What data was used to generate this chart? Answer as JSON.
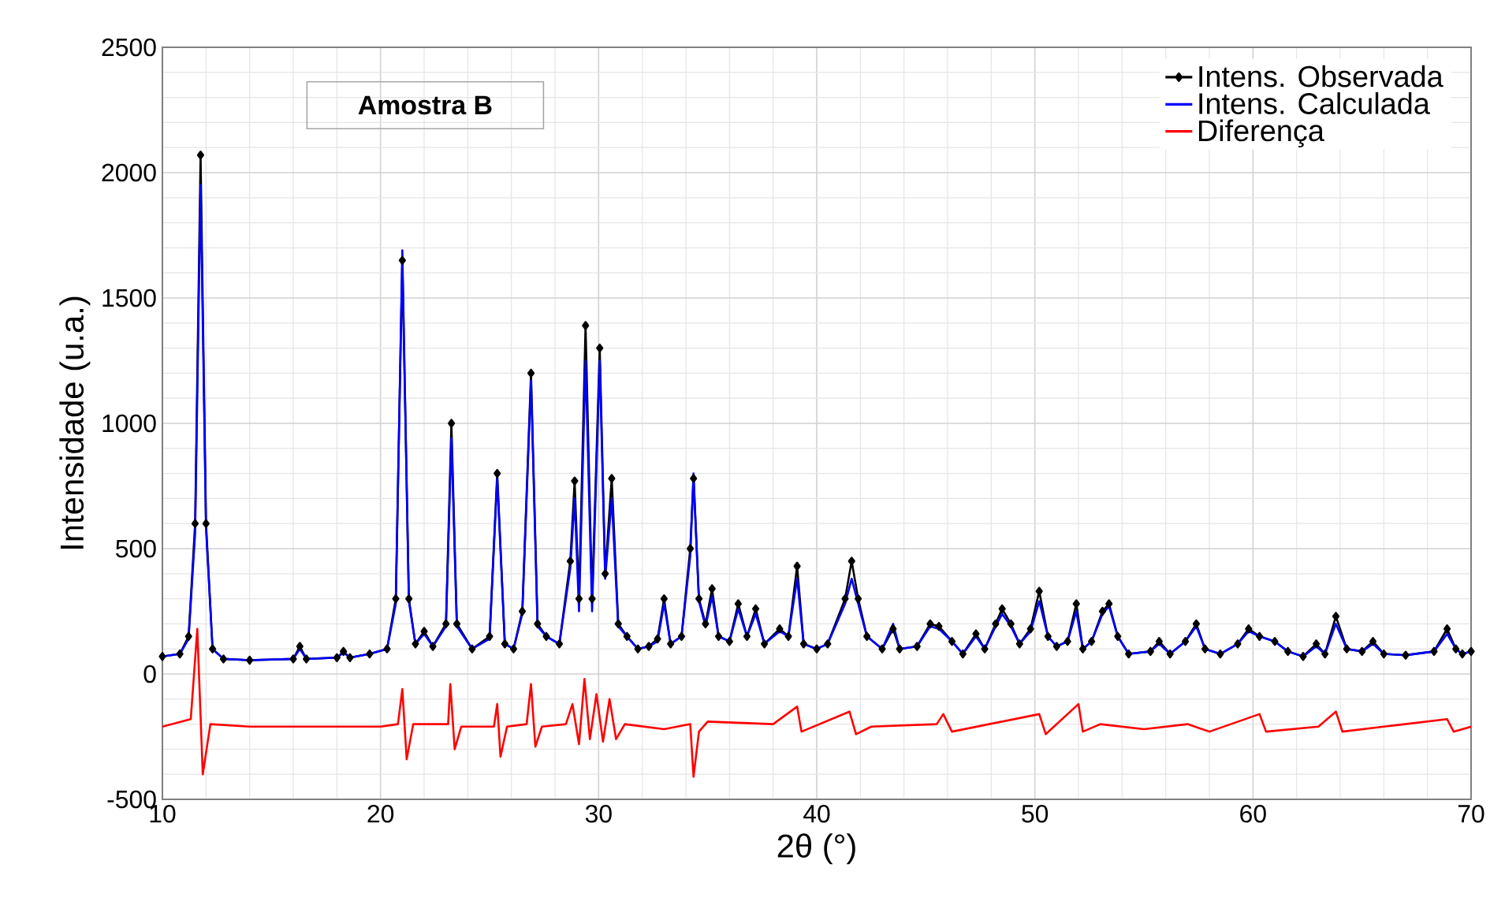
{
  "chart_data": {
    "type": "line",
    "xlabel": "2θ (°)",
    "ylabel": "Intensidade (u.a.)",
    "xlim": [
      10,
      70
    ],
    "ylim": [
      -500,
      2500
    ],
    "xticks": [
      10,
      20,
      30,
      40,
      50,
      60,
      70
    ],
    "yticks": [
      -500,
      0,
      500,
      1000,
      1500,
      2000,
      2500
    ],
    "grid": true,
    "legend": "top right",
    "annotations": [
      "Amostra B"
    ],
    "series": [
      {
        "name": "Intens. Observada",
        "color": "#000000",
        "marker": "diamond",
        "x": [
          10,
          10.8,
          11.2,
          11.5,
          11.75,
          12.0,
          12.3,
          12.8,
          14,
          16,
          16.3,
          16.6,
          18,
          18.3,
          18.6,
          19.5,
          20.3,
          20.7,
          21.0,
          21.3,
          21.6,
          22.0,
          22.4,
          23.0,
          23.25,
          23.5,
          24.2,
          25.0,
          25.35,
          25.7,
          26.1,
          26.5,
          26.9,
          27.2,
          27.6,
          28.2,
          28.7,
          28.9,
          29.1,
          29.4,
          29.7,
          30.05,
          30.3,
          30.6,
          30.9,
          31.3,
          31.8,
          32.3,
          32.7,
          33.0,
          33.3,
          33.8,
          34.2,
          34.35,
          34.6,
          34.9,
          35.2,
          35.5,
          36.0,
          36.4,
          36.8,
          37.2,
          37.6,
          38.3,
          38.7,
          39.1,
          39.4,
          40.0,
          40.5,
          41.3,
          41.6,
          41.9,
          42.3,
          43.0,
          43.5,
          43.8,
          44.6,
          45.2,
          45.6,
          46.2,
          46.7,
          47.3,
          47.7,
          48.2,
          48.5,
          48.9,
          49.3,
          49.8,
          50.2,
          50.6,
          51.0,
          51.5,
          51.9,
          52.2,
          52.6,
          53.1,
          53.4,
          53.8,
          54.3,
          55.3,
          55.7,
          56.2,
          56.9,
          57.4,
          57.8,
          58.5,
          59.3,
          59.8,
          60.3,
          61,
          61.6,
          62.3,
          62.9,
          63.3,
          63.8,
          64.3,
          65.0,
          65.5,
          66,
          67,
          68.3,
          68.9,
          69.3,
          69.6,
          70
        ],
        "values": [
          70,
          80,
          150,
          600,
          2070,
          600,
          100,
          60,
          55,
          60,
          110,
          60,
          65,
          90,
          65,
          80,
          100,
          300,
          1650,
          300,
          120,
          170,
          110,
          200,
          1000,
          200,
          100,
          150,
          800,
          120,
          100,
          250,
          1200,
          200,
          150,
          120,
          450,
          770,
          300,
          1390,
          300,
          1300,
          400,
          780,
          200,
          150,
          100,
          110,
          140,
          300,
          120,
          150,
          500,
          780,
          300,
          200,
          340,
          150,
          130,
          280,
          150,
          260,
          120,
          180,
          150,
          430,
          120,
          100,
          120,
          300,
          450,
          300,
          150,
          100,
          180,
          100,
          110,
          200,
          190,
          130,
          80,
          160,
          100,
          200,
          260,
          200,
          120,
          180,
          330,
          150,
          110,
          130,
          280,
          100,
          130,
          250,
          280,
          150,
          80,
          90,
          130,
          80,
          130,
          200,
          100,
          80,
          120,
          180,
          150,
          130,
          90,
          70,
          120,
          80,
          230,
          100,
          90,
          130,
          80,
          75,
          90,
          180,
          100,
          80,
          90
        ]
      },
      {
        "name": "Intens. Calculada",
        "color": "#0000ff",
        "marker": "none",
        "x": [
          10,
          10.8,
          11.2,
          11.5,
          11.75,
          12.0,
          12.3,
          12.8,
          14,
          16,
          16.3,
          16.6,
          18,
          18.3,
          18.6,
          19.5,
          20.3,
          20.7,
          21.0,
          21.3,
          21.6,
          22.0,
          22.4,
          23.0,
          23.25,
          23.5,
          24.2,
          25.0,
          25.35,
          25.7,
          26.1,
          26.5,
          26.9,
          27.2,
          27.6,
          28.2,
          28.7,
          28.9,
          29.1,
          29.4,
          29.7,
          30.05,
          30.3,
          30.6,
          30.9,
          31.3,
          31.8,
          32.3,
          32.7,
          33.0,
          33.3,
          33.8,
          34.2,
          34.35,
          34.6,
          34.9,
          35.2,
          35.5,
          36.0,
          36.4,
          36.8,
          37.2,
          37.6,
          38.3,
          38.7,
          39.1,
          39.4,
          40.0,
          40.5,
          41.3,
          41.6,
          41.9,
          42.3,
          43.0,
          43.5,
          43.8,
          44.6,
          45.2,
          45.6,
          46.2,
          46.7,
          47.3,
          47.7,
          48.2,
          48.5,
          48.9,
          49.3,
          49.8,
          50.2,
          50.6,
          51.0,
          51.5,
          51.9,
          52.2,
          52.6,
          53.1,
          53.4,
          53.8,
          54.3,
          55.3,
          55.7,
          56.2,
          56.9,
          57.4,
          57.8,
          58.5,
          59.3,
          59.8,
          60.3,
          61,
          61.6,
          62.3,
          62.9,
          63.3,
          63.8,
          64.3,
          65.0,
          65.5,
          66,
          67,
          68.3,
          68.9,
          69.3,
          69.6,
          70
        ],
        "values": [
          70,
          80,
          140,
          560,
          1950,
          580,
          100,
          60,
          55,
          60,
          100,
          60,
          65,
          85,
          65,
          80,
          100,
          280,
          1690,
          290,
          120,
          160,
          110,
          190,
          940,
          190,
          100,
          140,
          780,
          120,
          100,
          240,
          1170,
          190,
          150,
          120,
          420,
          700,
          250,
          1250,
          250,
          1250,
          380,
          700,
          190,
          150,
          100,
          110,
          130,
          280,
          120,
          150,
          470,
          800,
          290,
          190,
          310,
          150,
          130,
          260,
          150,
          240,
          120,
          170,
          150,
          380,
          120,
          100,
          120,
          280,
          380,
          280,
          150,
          100,
          200,
          100,
          110,
          190,
          180,
          130,
          80,
          150,
          100,
          190,
          240,
          190,
          120,
          170,
          290,
          150,
          110,
          130,
          250,
          100,
          130,
          240,
          270,
          150,
          80,
          90,
          120,
          80,
          130,
          190,
          100,
          80,
          120,
          170,
          150,
          130,
          90,
          70,
          110,
          80,
          200,
          100,
          90,
          120,
          80,
          75,
          90,
          160,
          100,
          80,
          90
        ]
      },
      {
        "name": "Diferença",
        "color": "#ff0000",
        "marker": "none",
        "x": [
          10,
          11.3,
          11.6,
          11.85,
          12.2,
          14,
          16,
          18,
          20,
          20.8,
          21.0,
          21.2,
          21.5,
          23.1,
          23.2,
          23.4,
          23.7,
          25.2,
          25.35,
          25.5,
          25.8,
          26.7,
          26.9,
          27.1,
          27.4,
          28.5,
          28.8,
          29.1,
          29.35,
          29.6,
          29.9,
          30.2,
          30.5,
          30.8,
          31.2,
          33,
          34.2,
          34.35,
          34.6,
          35,
          38,
          39.1,
          39.3,
          41.5,
          41.8,
          42.5,
          45.5,
          45.8,
          46.2,
          50.2,
          50.5,
          52.0,
          52.2,
          53,
          55,
          57,
          58,
          60.3,
          60.6,
          63,
          63.8,
          64.1,
          66,
          68.9,
          69.2,
          70
        ],
        "values": [
          -210,
          -180,
          180,
          -400,
          -200,
          -210,
          -210,
          -210,
          -210,
          -200,
          -60,
          -340,
          -200,
          -200,
          -40,
          -300,
          -210,
          -210,
          -120,
          -330,
          -210,
          -200,
          -40,
          -290,
          -210,
          -200,
          -120,
          -280,
          -20,
          -260,
          -80,
          -270,
          -100,
          -260,
          -200,
          -220,
          -200,
          -410,
          -230,
          -190,
          -200,
          -130,
          -230,
          -150,
          -240,
          -210,
          -200,
          -160,
          -230,
          -160,
          -240,
          -120,
          -230,
          -200,
          -220,
          -200,
          -230,
          -160,
          -230,
          -210,
          -150,
          -230,
          -210,
          -180,
          -230,
          -210
        ]
      }
    ]
  }
}
